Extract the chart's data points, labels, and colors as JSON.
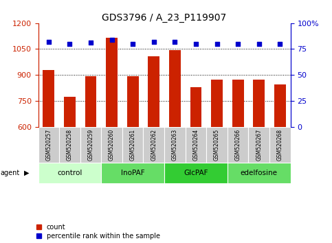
{
  "title": "GDS3796 / A_23_P119907",
  "samples": [
    "GSM520257",
    "GSM520258",
    "GSM520259",
    "GSM520260",
    "GSM520261",
    "GSM520262",
    "GSM520263",
    "GSM520264",
    "GSM520265",
    "GSM520266",
    "GSM520267",
    "GSM520268"
  ],
  "counts": [
    930,
    775,
    895,
    1115,
    895,
    1010,
    1045,
    830,
    875,
    875,
    875,
    845
  ],
  "percentiles": [
    82,
    80,
    81,
    84,
    80,
    82,
    82,
    80,
    80,
    80,
    80,
    80
  ],
  "ylim_left": [
    600,
    1200
  ],
  "ylim_right": [
    0,
    100
  ],
  "yticks_left": [
    600,
    750,
    900,
    1050,
    1200
  ],
  "yticks_right": [
    0,
    25,
    50,
    75,
    100
  ],
  "bar_color": "#cc2200",
  "dot_color": "#0000cc",
  "groups": [
    {
      "label": "control",
      "start": 0,
      "end": 3,
      "color": "#ccffcc"
    },
    {
      "label": "InoPAF",
      "start": 3,
      "end": 6,
      "color": "#66dd66"
    },
    {
      "label": "GlcPAF",
      "start": 6,
      "end": 9,
      "color": "#33cc33"
    },
    {
      "label": "edelfosine",
      "start": 9,
      "end": 12,
      "color": "#66dd66"
    }
  ],
  "left_axis_color": "#cc2200",
  "right_axis_color": "#0000cc",
  "grid_color": "#000000",
  "agent_label": "agent",
  "legend_count": "count",
  "legend_percentile": "percentile rank within the sample",
  "bar_bottom": 600
}
